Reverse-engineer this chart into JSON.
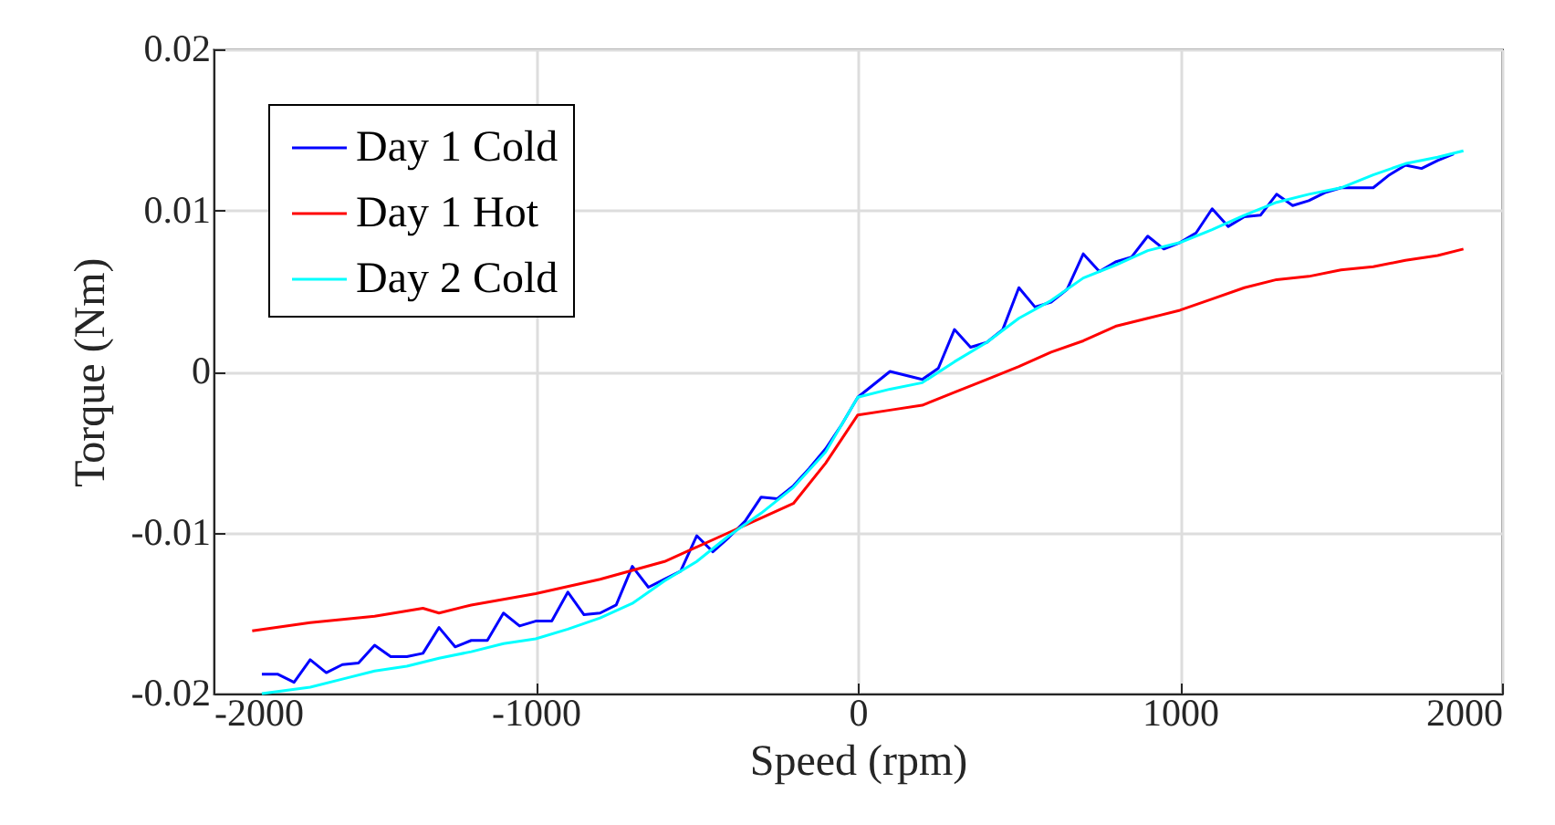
{
  "chart_data": {
    "type": "line",
    "xlabel": "Speed (rpm)",
    "ylabel": "Torque (Nm)",
    "xlim": [
      -2000,
      2000
    ],
    "xticks": [
      -2000,
      -1000,
      0,
      1000,
      2000
    ],
    "ylim": [
      -0.02,
      0.02
    ],
    "yticks": [
      -0.02,
      -0.01,
      0,
      0.01,
      0.02
    ],
    "grid": true,
    "legend": "top left",
    "line_style": "solid",
    "marker": "none",
    "series": [
      {
        "name": "Day 1 Cold",
        "color": "#0000ff",
        "x": [
          -1850,
          -1800,
          -1750,
          -1700,
          -1650,
          -1600,
          -1550,
          -1500,
          -1450,
          -1400,
          -1350,
          -1300,
          -1250,
          -1200,
          -1150,
          -1100,
          -1050,
          -1000,
          -950,
          -900,
          -850,
          -800,
          -750,
          -700,
          -650,
          -600,
          -550,
          -500,
          -450,
          -400,
          -350,
          -300,
          -250,
          -200,
          -150,
          -100,
          -50,
          0,
          100,
          200,
          250,
          300,
          350,
          400,
          450,
          500,
          550,
          600,
          650,
          700,
          750,
          800,
          850,
          900,
          950,
          1000,
          1050,
          1100,
          1150,
          1200,
          1250,
          1300,
          1350,
          1400,
          1450,
          1500,
          1550,
          1600,
          1650,
          1700,
          1750,
          1800,
          1850
        ],
        "values": [
          -0.0188,
          -0.0188,
          -0.0193,
          -0.0179,
          -0.0187,
          -0.0182,
          -0.0181,
          -0.017,
          -0.0177,
          -0.0177,
          -0.0175,
          -0.0159,
          -0.0171,
          -0.0167,
          -0.0167,
          -0.015,
          -0.0158,
          -0.0155,
          -0.0155,
          -0.0137,
          -0.0151,
          -0.015,
          -0.0145,
          -0.0121,
          -0.0134,
          -0.0129,
          -0.0124,
          -0.0102,
          -0.0112,
          -0.0103,
          -0.0093,
          -0.0078,
          -0.0079,
          -0.0071,
          -0.006,
          -0.0048,
          -0.0033,
          -0.0016,
          0.0,
          -0.0005,
          0.0002,
          0.0026,
          0.0015,
          0.0018,
          0.0026,
          0.0052,
          0.004,
          0.0043,
          0.0051,
          0.0073,
          0.0062,
          0.0068,
          0.0071,
          0.0084,
          0.0076,
          0.008,
          0.0086,
          0.0101,
          0.009,
          0.0096,
          0.0097,
          0.011,
          0.0103,
          0.0106,
          0.0111,
          0.0114,
          0.0114,
          0.0114,
          0.0122,
          0.0128,
          0.0126,
          0.0131,
          0.0135
        ]
      },
      {
        "name": "Day 1 Hot",
        "color": "#ff0000",
        "x": [
          -1880,
          -1700,
          -1500,
          -1350,
          -1300,
          -1200,
          -1000,
          -800,
          -600,
          -400,
          -300,
          -200,
          -100,
          -50,
          0,
          100,
          200,
          300,
          400,
          500,
          600,
          700,
          800,
          900,
          1000,
          1100,
          1200,
          1300,
          1400,
          1500,
          1600,
          1700,
          1800,
          1880
        ],
        "values": [
          -0.0161,
          -0.0156,
          -0.0152,
          -0.0147,
          -0.015,
          -0.0145,
          -0.0138,
          -0.0129,
          -0.0118,
          -0.01,
          -0.0091,
          -0.0082,
          -0.0057,
          -0.0042,
          -0.0027,
          -0.0024,
          -0.0021,
          -0.0013,
          -0.0005,
          0.0003,
          0.0012,
          0.0019,
          0.0028,
          0.0033,
          0.0038,
          0.0045,
          0.0052,
          0.0057,
          0.0059,
          0.0063,
          0.0065,
          0.0069,
          0.0072,
          0.0076
        ]
      },
      {
        "name": "Day 2 Cold",
        "color": "#00ffff",
        "x": [
          -1850,
          -1700,
          -1600,
          -1500,
          -1400,
          -1300,
          -1200,
          -1100,
          -1000,
          -900,
          -800,
          -700,
          -600,
          -500,
          -400,
          -300,
          -200,
          -100,
          -50,
          0,
          100,
          200,
          300,
          400,
          500,
          600,
          700,
          800,
          900,
          1000,
          1100,
          1200,
          1300,
          1400,
          1500,
          1600,
          1700,
          1800,
          1880
        ],
        "values": [
          -0.02,
          -0.0196,
          -0.0191,
          -0.0186,
          -0.0183,
          -0.0178,
          -0.0174,
          -0.0169,
          -0.0166,
          -0.016,
          -0.0153,
          -0.0144,
          -0.013,
          -0.0118,
          -0.0102,
          -0.0088,
          -0.0072,
          -0.005,
          -0.0033,
          -0.0016,
          -0.0011,
          -0.0007,
          0.0006,
          0.0018,
          0.0033,
          0.0044,
          0.0058,
          0.0066,
          0.0075,
          0.008,
          0.0088,
          0.0097,
          0.0105,
          0.011,
          0.0114,
          0.0122,
          0.0129,
          0.0133,
          0.0137
        ]
      }
    ]
  }
}
